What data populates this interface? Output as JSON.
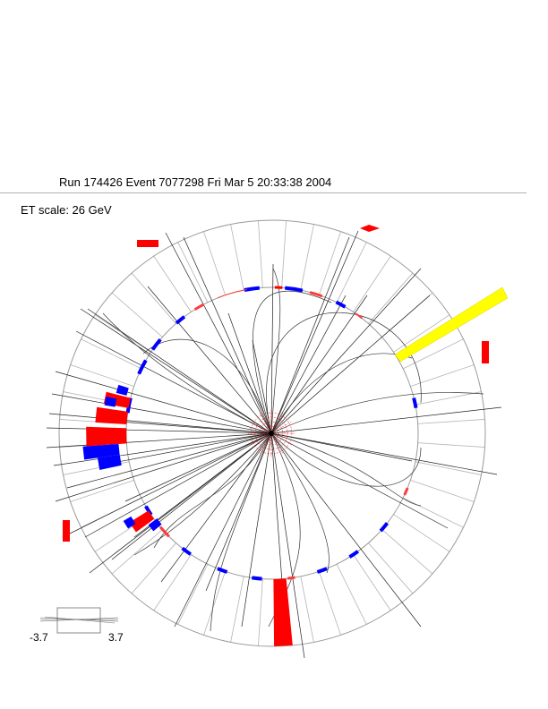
{
  "header": {
    "title": "Run 174426 Event 7077298 Fri Mar  5 20:33:38 2004"
  },
  "scale": {
    "label": "ET scale: 26 GeV"
  },
  "legend": {
    "low": "-3.7",
    "high": "3.7"
  },
  "colors": {
    "background": "#ffffff",
    "ring": "#9a9a9a",
    "track": "#000000",
    "em_tower": "#ff0000",
    "had_tower": "#0000ff",
    "muon_hit": "#ff0000",
    "jet_highlight": "#ffff00",
    "vertex": "#ff0000"
  },
  "detector": {
    "outer_segments": 48
  }
}
